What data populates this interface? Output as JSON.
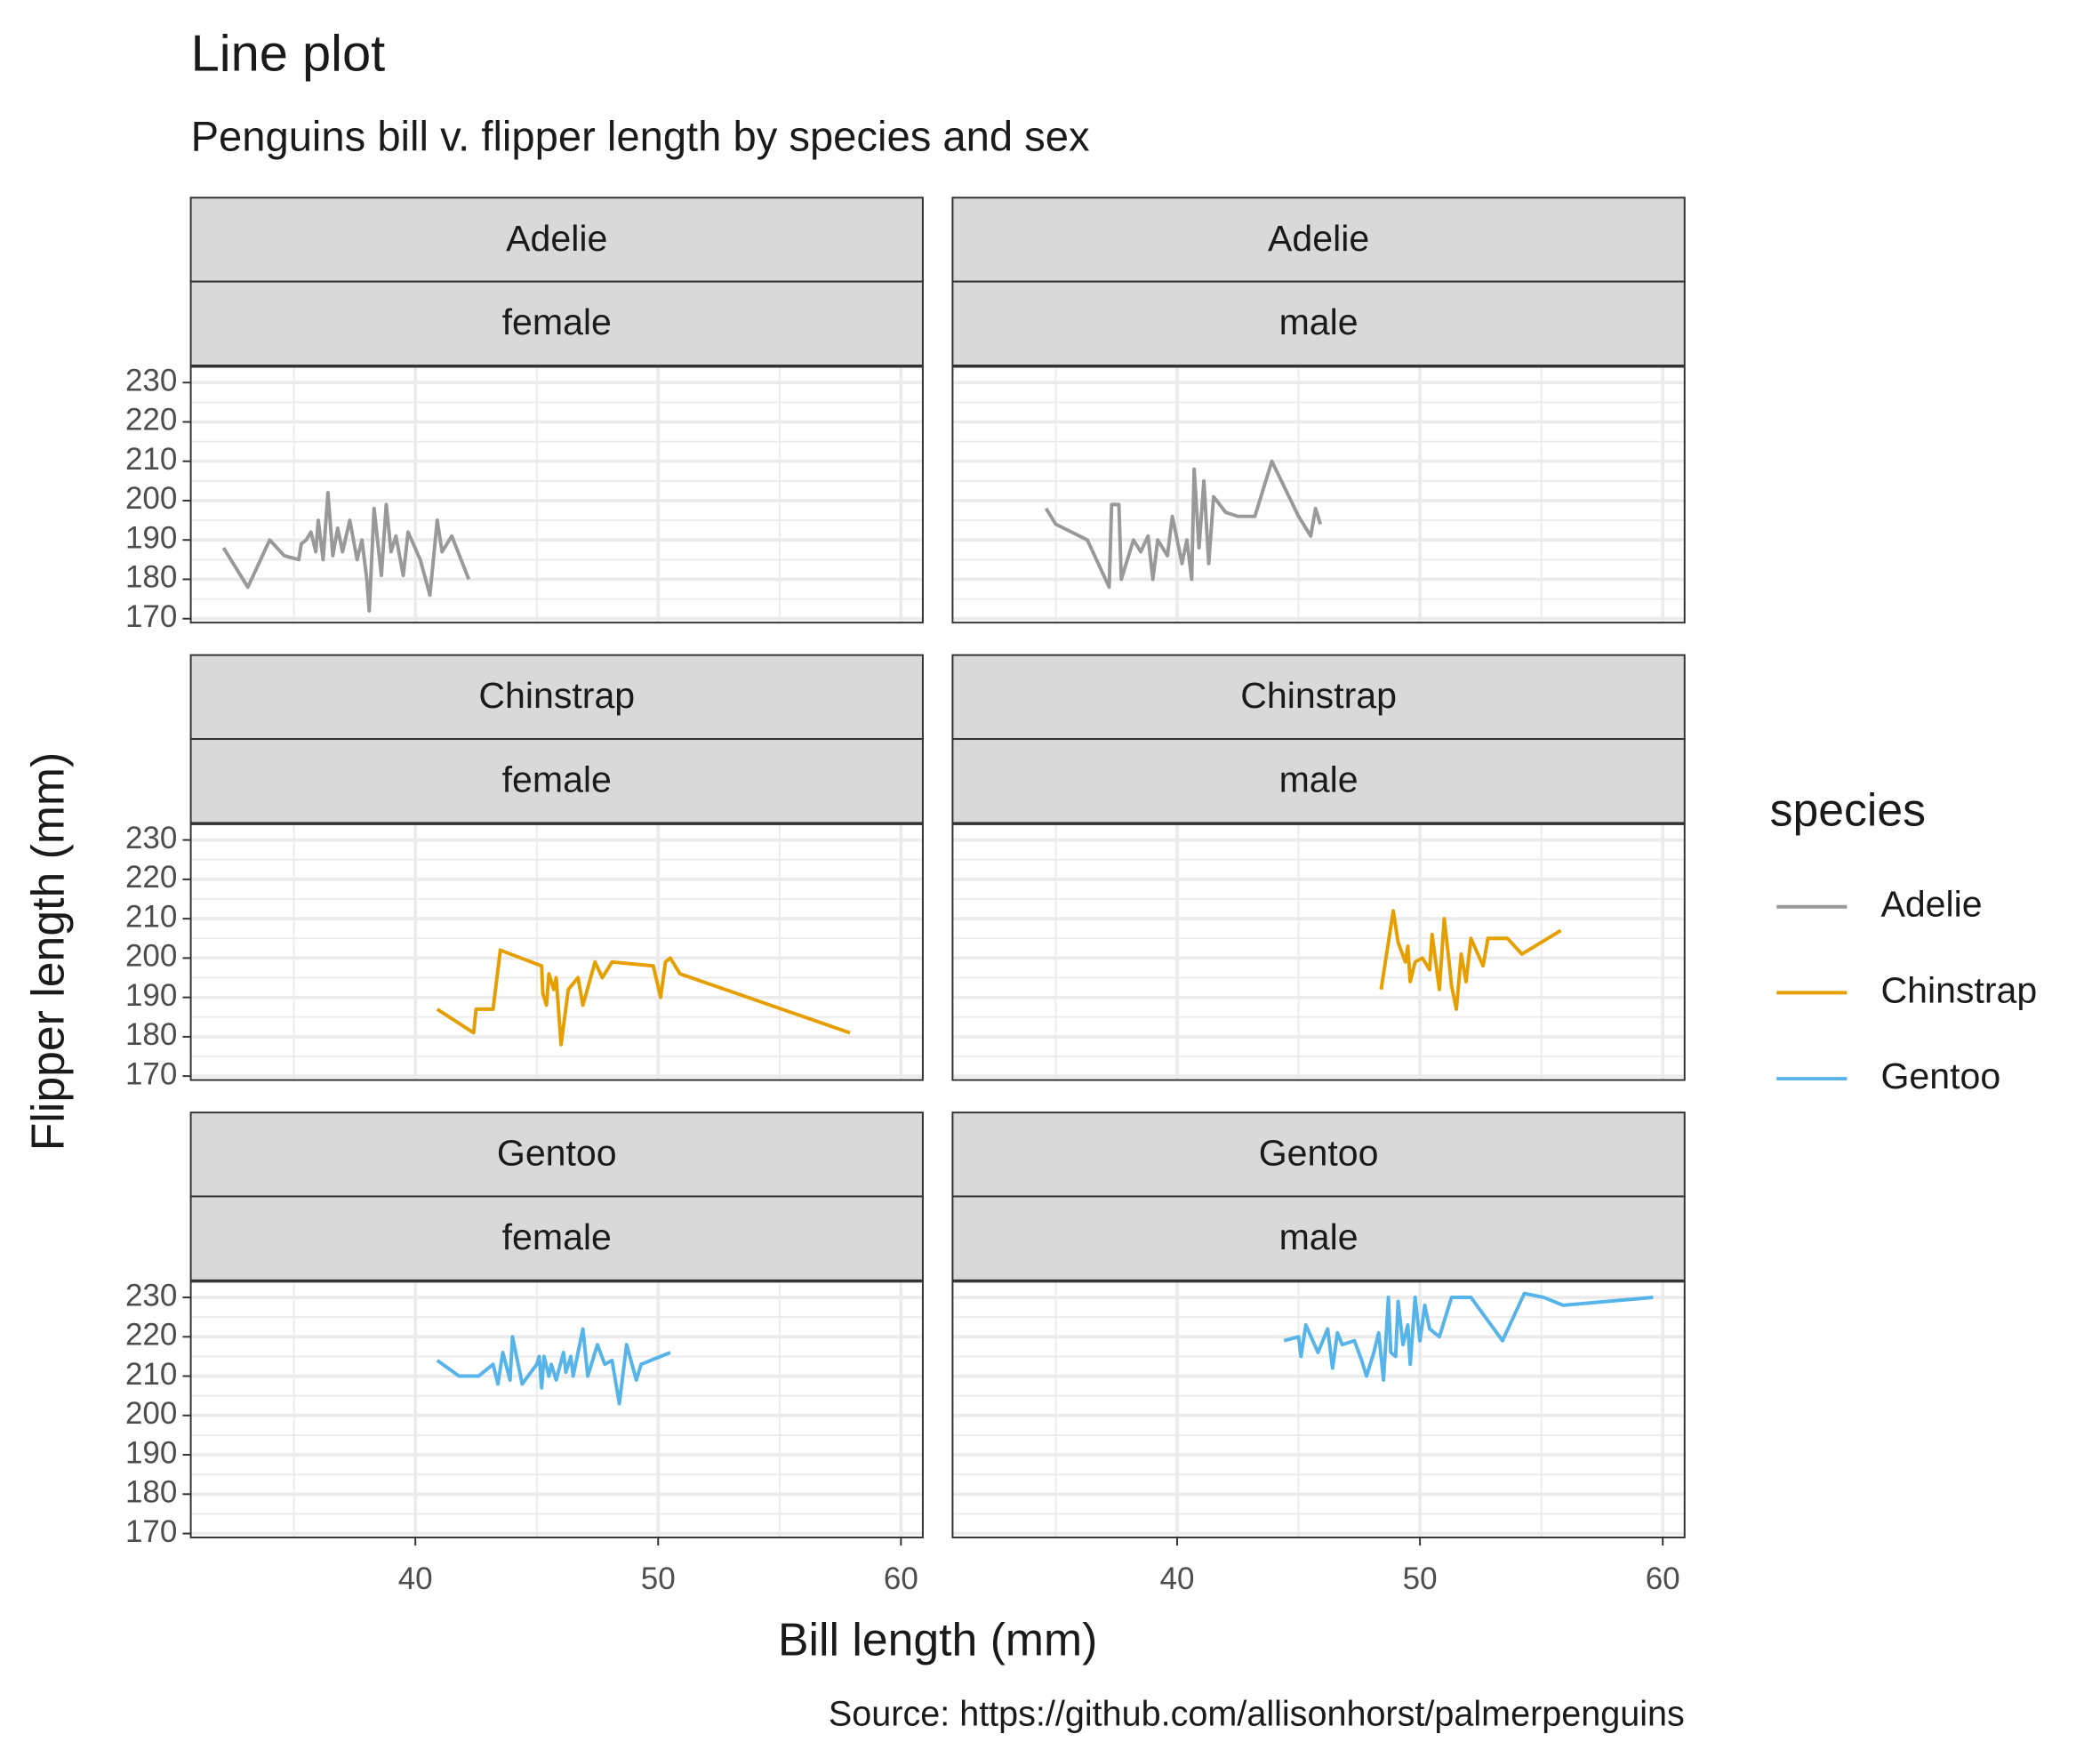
{
  "title": "Line plot",
  "subtitle": "Penguins bill v. flipper length by species and sex",
  "x_label": "Bill length (mm)",
  "y_label": "Flipper length (mm)",
  "caption": "Source: https://github.com/allisonhorst/palmerpenguins",
  "legend_title": "species",
  "chart_data": [
    {
      "type": "line",
      "facets": [
        "Adelie",
        "female"
      ],
      "xlim": [
        30.75,
        60.9
      ],
      "xticks": [
        40,
        50,
        60
      ],
      "ylim": [
        169,
        234
      ],
      "yticks": [
        170,
        180,
        190,
        200,
        210,
        220,
        230
      ],
      "grid": true,
      "x": [
        32.1,
        33.1,
        34.0,
        34.6,
        35.2,
        35.3,
        35.5,
        35.7,
        35.9,
        36.0,
        36.2,
        36.4,
        36.6,
        36.8,
        37.0,
        37.3,
        37.6,
        37.8,
        38.0,
        38.1,
        38.3,
        38.6,
        38.8,
        39.0,
        39.2,
        39.5,
        39.7,
        40.2,
        40.6,
        40.9,
        41.1,
        41.5,
        42.2
      ],
      "series": [
        {
          "name": "Adelie",
          "color": "#999999",
          "values": [
            188,
            178,
            190,
            186,
            185,
            189,
            190,
            192,
            187,
            195,
            185,
            202,
            186,
            193,
            187,
            195,
            185,
            190,
            180,
            172,
            198,
            181,
            199,
            187,
            191,
            181,
            192,
            185,
            176,
            195,
            187,
            191,
            180
          ]
        }
      ]
    },
    {
      "type": "line",
      "facets": [
        "Adelie",
        "male"
      ],
      "xlim": [
        30.75,
        60.9
      ],
      "xticks": [
        40,
        50,
        60
      ],
      "ylim": [
        169,
        234
      ],
      "yticks": [
        170,
        180,
        190,
        200,
        210,
        220,
        230
      ],
      "grid": true,
      "x": [
        34.6,
        35.0,
        36.3,
        37.2,
        37.3,
        37.6,
        37.7,
        38.2,
        38.5,
        38.8,
        39.0,
        39.2,
        39.6,
        39.8,
        40.2,
        40.4,
        40.6,
        40.7,
        40.9,
        41.1,
        41.3,
        41.5,
        42.0,
        42.5,
        43.2,
        43.9,
        45.0,
        45.5,
        45.7,
        45.9
      ],
      "series": [
        {
          "name": "Adelie",
          "color": "#999999",
          "values": [
            198,
            194,
            190,
            178,
            199,
            199,
            180,
            190,
            187,
            191,
            180,
            190,
            186,
            196,
            184,
            190,
            180,
            208,
            188,
            205,
            184,
            201,
            197,
            196,
            196,
            210,
            196,
            191,
            198,
            194
          ]
        }
      ]
    },
    {
      "type": "line",
      "facets": [
        "Chinstrap",
        "female"
      ],
      "xlim": [
        30.75,
        60.9
      ],
      "xticks": [
        40,
        50,
        60
      ],
      "ylim": [
        169,
        234
      ],
      "yticks": [
        170,
        180,
        190,
        200,
        210,
        220,
        230
      ],
      "grid": true,
      "x": [
        40.9,
        42.4,
        42.5,
        43.2,
        43.5,
        45.2,
        45.25,
        45.4,
        45.5,
        45.7,
        45.8,
        46.0,
        46.3,
        46.7,
        46.9,
        47.4,
        47.7,
        48.1,
        49.8,
        50.1,
        50.3,
        50.5,
        50.9,
        57.9
      ],
      "series": [
        {
          "name": "Chinstrap",
          "color": "#E69F00",
          "values": [
            187,
            181,
            187,
            187,
            202,
            198,
            191,
            188,
            196,
            192,
            195,
            178,
            192,
            195,
            188,
            199,
            195,
            199,
            198,
            190,
            199,
            200,
            196,
            181
          ]
        }
      ]
    },
    {
      "type": "line",
      "facets": [
        "Chinstrap",
        "male"
      ],
      "xlim": [
        30.75,
        60.9
      ],
      "xticks": [
        40,
        50,
        60
      ],
      "ylim": [
        169,
        234
      ],
      "yticks": [
        170,
        180,
        190,
        200,
        210,
        220,
        230
      ],
      "grid": true,
      "x": [
        48.4,
        48.9,
        49.1,
        49.4,
        49.5,
        49.6,
        49.8,
        50.1,
        50.4,
        50.5,
        50.8,
        51.0,
        51.2,
        51.3,
        51.5,
        51.7,
        51.9,
        52.1,
        52.6,
        52.8,
        53.6,
        54.2,
        55.8
      ],
      "series": [
        {
          "name": "Chinstrap",
          "color": "#E69F00",
          "values": [
            192,
            212,
            204,
            199,
            203,
            194,
            199,
            200,
            197,
            206,
            192,
            210,
            199,
            193,
            187,
            201,
            194,
            205,
            198,
            205,
            205,
            201,
            207
          ]
        }
      ]
    },
    {
      "type": "line",
      "facets": [
        "Gentoo",
        "female"
      ],
      "xlim": [
        30.75,
        60.9
      ],
      "xticks": [
        40,
        50,
        60
      ],
      "ylim": [
        169,
        234
      ],
      "yticks": [
        170,
        180,
        190,
        200,
        210,
        220,
        230
      ],
      "grid": true,
      "x": [
        40.9,
        41.8,
        42.6,
        43.2,
        43.4,
        43.6,
        43.9,
        44.0,
        44.4,
        45.0,
        45.1,
        45.2,
        45.3,
        45.5,
        45.6,
        45.8,
        46.1,
        46.2,
        46.4,
        46.5,
        46.9,
        47.1,
        47.5,
        47.8,
        48.1,
        48.4,
        48.7,
        49.1,
        49.3,
        50.5
      ],
      "series": [
        {
          "name": "Gentoo",
          "color": "#56B4E9",
          "values": [
            214,
            210,
            210,
            213,
            208,
            216,
            209,
            220,
            208,
            213,
            215,
            207,
            215,
            210,
            213,
            209,
            216,
            211,
            215,
            210,
            222,
            210,
            218,
            213,
            214,
            203,
            218,
            209,
            213,
            216
          ]
        }
      ]
    },
    {
      "type": "line",
      "facets": [
        "Gentoo",
        "male"
      ],
      "xlim": [
        30.75,
        60.9
      ],
      "xticks": [
        40,
        50,
        60
      ],
      "ylim": [
        169,
        234
      ],
      "yticks": [
        170,
        180,
        190,
        200,
        210,
        220,
        230
      ],
      "grid": true,
      "x": [
        44.4,
        45.0,
        45.1,
        45.3,
        45.8,
        46.2,
        46.4,
        46.6,
        46.8,
        47.3,
        47.6,
        47.8,
        48.1,
        48.3,
        48.5,
        48.7,
        48.8,
        49.0,
        49.1,
        49.3,
        49.5,
        49.6,
        49.8,
        50.0,
        50.2,
        50.4,
        50.8,
        51.1,
        51.3,
        52.1,
        53.4,
        54.3,
        55.1,
        55.9,
        59.6
      ],
      "series": [
        {
          "name": "Gentoo",
          "color": "#56B4E9",
          "values": [
            219,
            220,
            215,
            223,
            216,
            222,
            212,
            221,
            218,
            219,
            214,
            210,
            216,
            221,
            209,
            230,
            216,
            215,
            229,
            218,
            223,
            213,
            230,
            219,
            228,
            222,
            220,
            226,
            230,
            230,
            219,
            231,
            230,
            228,
            230
          ]
        }
      ]
    }
  ]
}
